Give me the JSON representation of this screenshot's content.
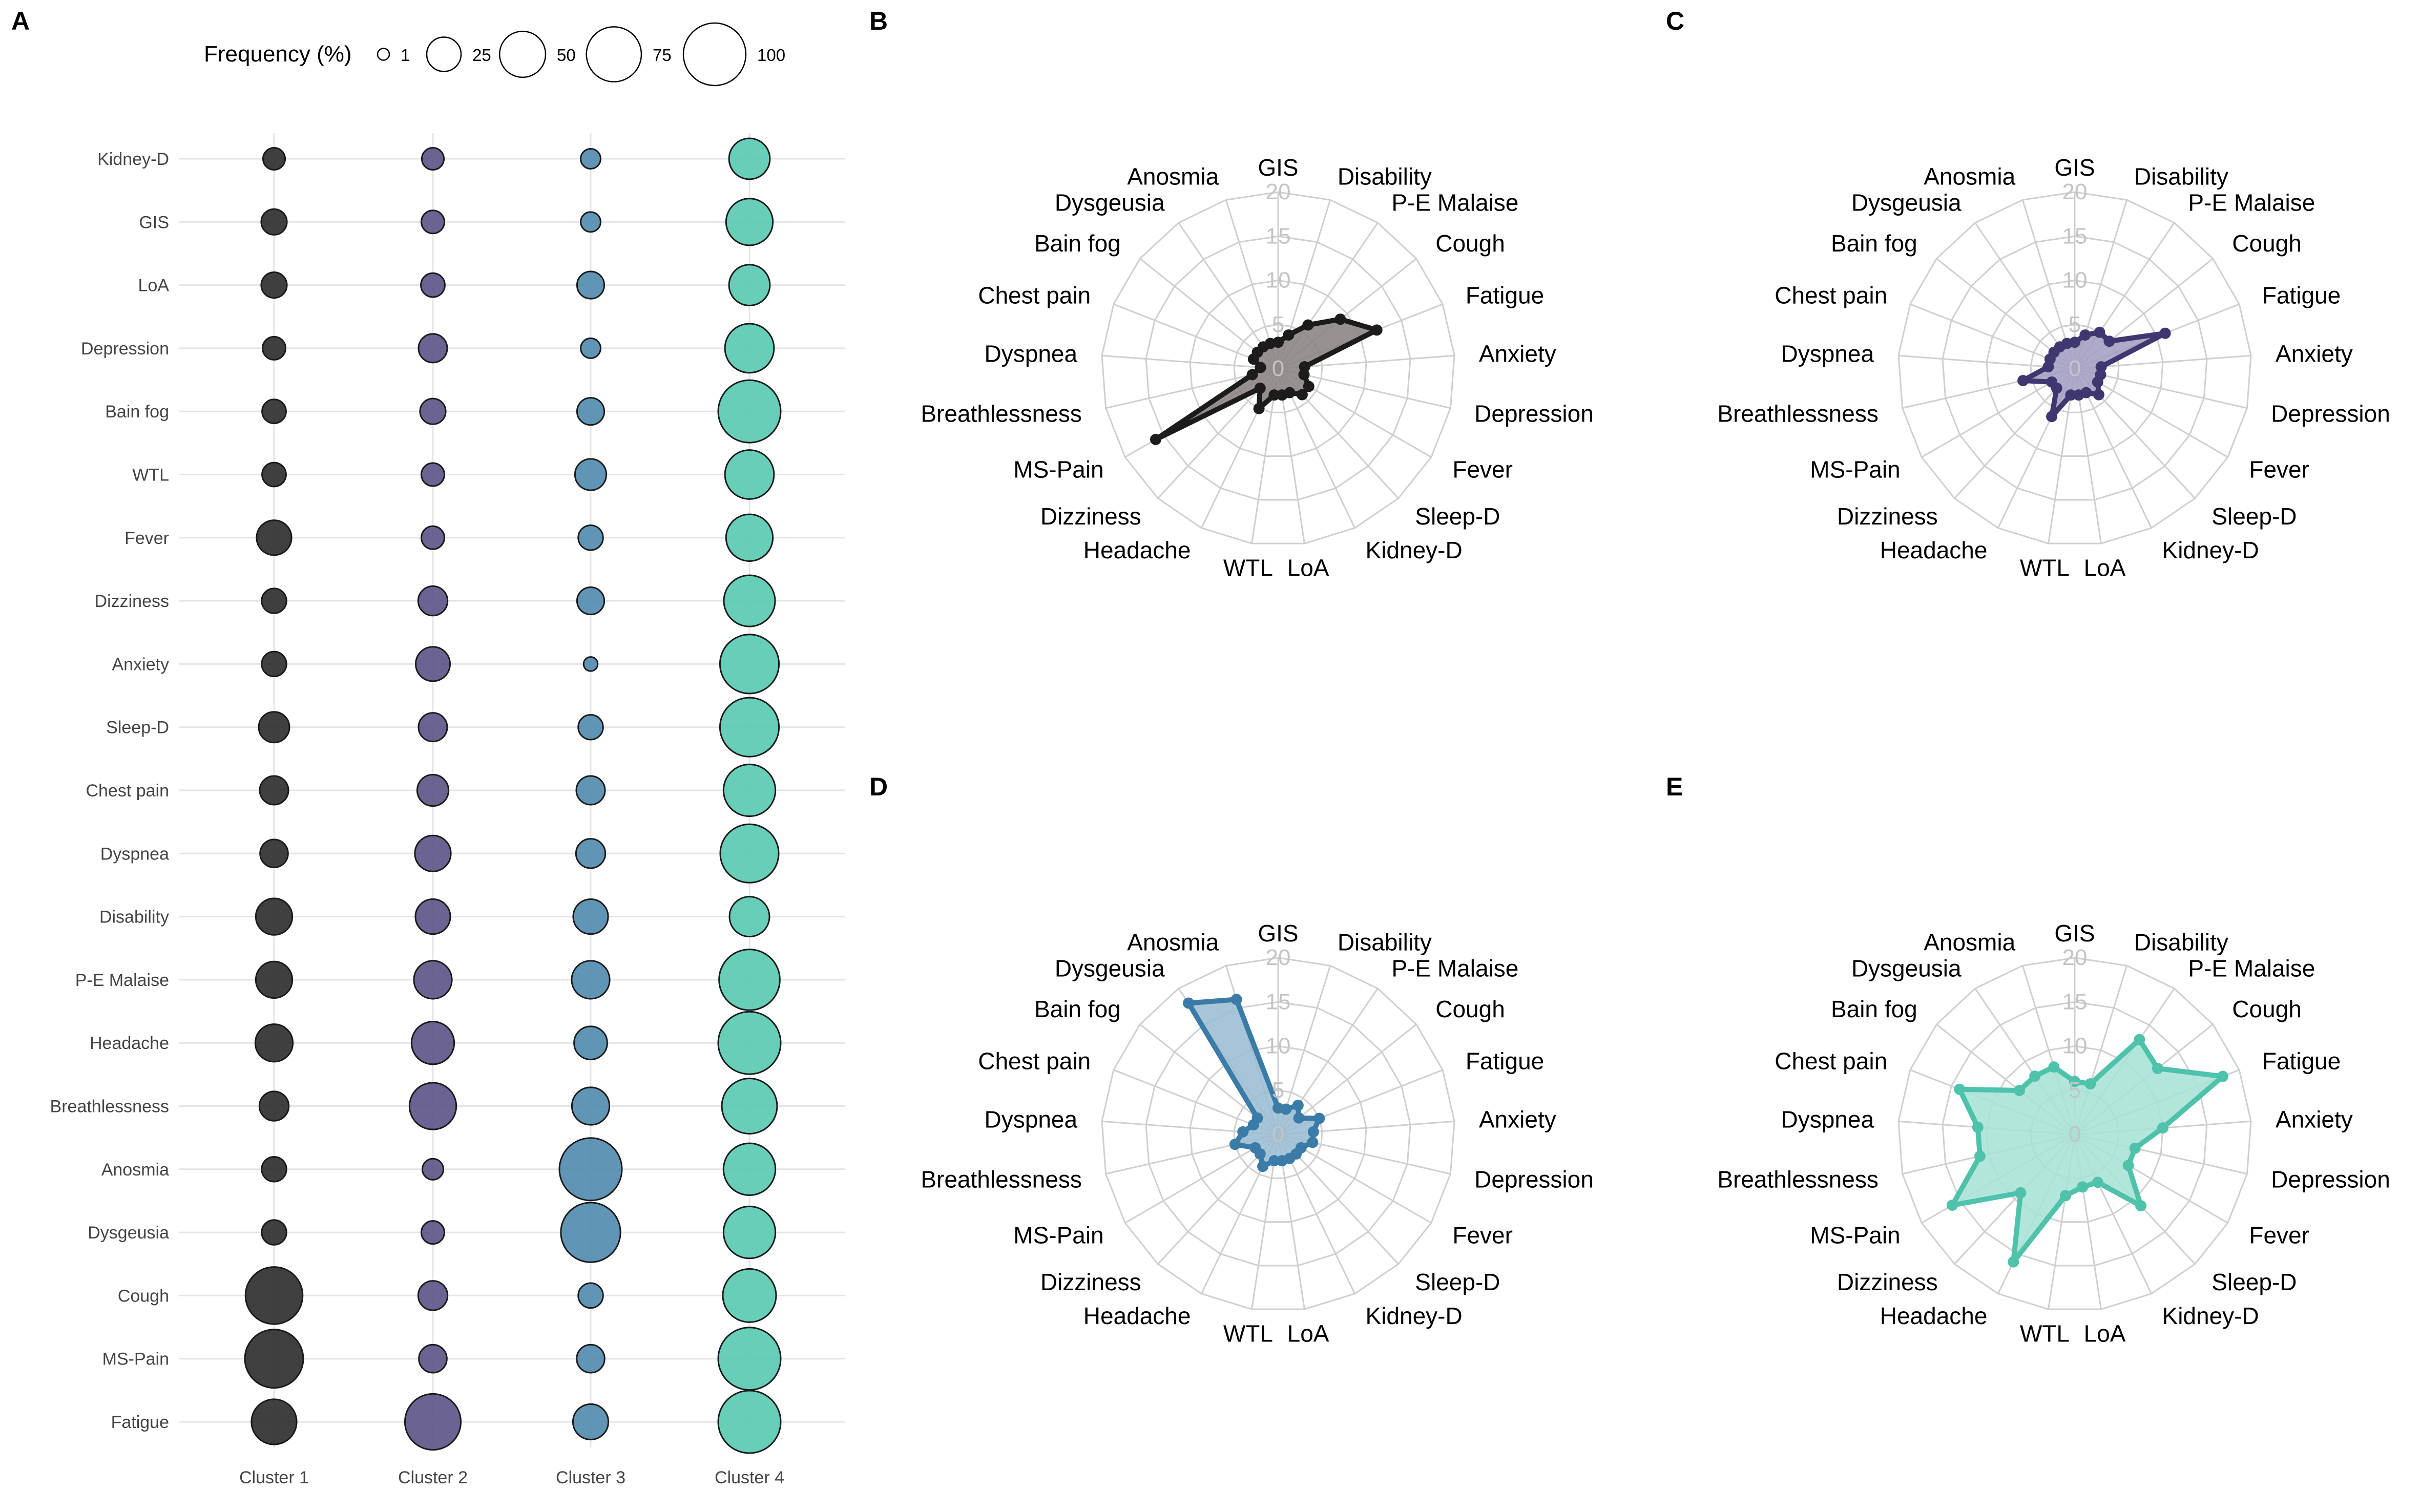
{
  "panel_letters": [
    "A",
    "B",
    "C",
    "D",
    "E"
  ],
  "legend": {
    "title": "Frequency (%)",
    "sizes": [
      1,
      25,
      50,
      75,
      100
    ],
    "labels": [
      "1",
      "25",
      "50",
      "75",
      "100"
    ]
  },
  "radar_ticks": [
    "0",
    "5",
    "10",
    "15",
    "20"
  ],
  "chart_data": [
    {
      "panel": "A",
      "type": "scatter",
      "x": [
        "Cluster 1",
        "Cluster 2",
        "Cluster 3",
        "Cluster 4"
      ],
      "y": [
        "Kidney-D",
        "GIS",
        "LoA",
        "Depression",
        "Bain fog",
        "WTL",
        "Fever",
        "Dizziness",
        "Anxiety",
        "Sleep-D",
        "Chest pain",
        "Dyspnea",
        "Disability",
        "P-E Malaise",
        "Headache",
        "Breathlessness",
        "Anosmia",
        "Dysgeusia",
        "Cough",
        "MS-Pain",
        "Fatigue"
      ],
      "size_label": "Frequency (%)",
      "series_colors": [
        "#2b2b2b",
        "#5b5285",
        "#4f89ad",
        "#57c9b0"
      ],
      "values": [
        [
          8,
          8,
          6,
          38
        ],
        [
          12,
          9,
          6,
          52
        ],
        [
          12,
          10,
          14,
          38
        ],
        [
          9,
          16,
          6,
          58
        ],
        [
          10,
          12,
          14,
          100
        ],
        [
          10,
          9,
          20,
          58
        ],
        [
          26,
          9,
          11,
          52
        ],
        [
          11,
          17,
          14,
          64
        ],
        [
          11,
          25,
          2,
          88
        ],
        [
          19,
          16,
          11,
          88
        ],
        [
          16,
          20,
          16,
          66
        ],
        [
          15,
          28,
          17,
          86
        ],
        [
          29,
          26,
          26,
          36
        ],
        [
          29,
          32,
          32,
          94
        ],
        [
          31,
          42,
          23,
          100
        ],
        [
          17,
          52,
          31,
          76
        ],
        [
          11,
          7,
          100,
          66
        ],
        [
          11,
          9,
          90,
          66
        ],
        [
          82,
          17,
          11,
          70
        ],
        [
          86,
          15,
          15,
          100
        ],
        [
          48,
          78,
          27,
          100
        ]
      ]
    },
    {
      "panel": "B",
      "type": "radar",
      "color": "#1c1c1c",
      "fill": "#8a8282",
      "axes": [
        "GIS",
        "Disability",
        "P-E Malaise",
        "Cough",
        "Fatigue",
        "Anxiety",
        "Depression",
        "Fever",
        "Sleep-D",
        "Kidney-D",
        "LoA",
        "WTL",
        "Headache",
        "Dizziness",
        "MS-Pain",
        "Breathlessness",
        "Dyspnea",
        "Chest pain",
        "Bain fog",
        "Dysgeusia",
        "Anosmia"
      ],
      "values": [
        3,
        4,
        6,
        9,
        12,
        3,
        3,
        4,
        4,
        3,
        3,
        3,
        5,
        3,
        16,
        3,
        2,
        3,
        3,
        3,
        3
      ],
      "rlim": [
        0,
        20
      ]
    },
    {
      "panel": "C",
      "type": "radar",
      "color": "#3f3870",
      "fill": "#a49ec2",
      "axes": [
        "GIS",
        "Disability",
        "P-E Malaise",
        "Cough",
        "Fatigue",
        "Anxiety",
        "Depression",
        "Fever",
        "Sleep-D",
        "Kidney-D",
        "LoA",
        "WTL",
        "Headache",
        "Dizziness",
        "MS-Pain",
        "Breathlessness",
        "Dyspnea",
        "Chest pain",
        "Bain fog",
        "Dysgeusia",
        "Anosmia"
      ],
      "values": [
        3,
        4,
        5,
        5,
        11,
        3,
        3,
        3,
        4,
        3,
        3,
        3,
        6,
        3,
        3,
        6,
        3,
        3,
        3,
        3,
        3
      ],
      "rlim": [
        0,
        20
      ]
    },
    {
      "panel": "D",
      "type": "radar",
      "color": "#3a7ba8",
      "fill": "#9bbdd3",
      "axes": [
        "GIS",
        "Disability",
        "P-E Malaise",
        "Cough",
        "Fatigue",
        "Anxiety",
        "Depression",
        "Fever",
        "Sleep-D",
        "Kidney-D",
        "LoA",
        "WTL",
        "Headache",
        "Dizziness",
        "MS-Pain",
        "Breathlessness",
        "Dyspnea",
        "Chest pain",
        "Bain fog",
        "Dysgeusia",
        "Anosmia"
      ],
      "values": [
        3,
        3,
        4,
        3,
        5,
        4,
        4,
        3,
        3,
        3,
        3,
        3,
        4,
        3,
        3,
        5,
        4,
        3,
        3,
        18,
        16
      ],
      "rlim": [
        0,
        20
      ]
    },
    {
      "panel": "E",
      "type": "radar",
      "color": "#4ec2aa",
      "fill": "#a9e3d6",
      "axes": [
        "GIS",
        "Disability",
        "P-E Malaise",
        "Cough",
        "Fatigue",
        "Anxiety",
        "Depression",
        "Fever",
        "Sleep-D",
        "Kidney-D",
        "LoA",
        "WTL",
        "Headache",
        "Dizziness",
        "MS-Pain",
        "Breathlessness",
        "Dyspnea",
        "Chest pain",
        "Bain fog",
        "Dysgeusia",
        "Anosmia"
      ],
      "values": [
        6,
        6,
        13,
        12,
        18,
        10,
        7,
        7,
        11,
        6,
        6,
        7,
        16,
        9,
        16,
        11,
        11,
        14,
        8,
        8,
        8
      ],
      "rlim": [
        0,
        20
      ]
    }
  ]
}
